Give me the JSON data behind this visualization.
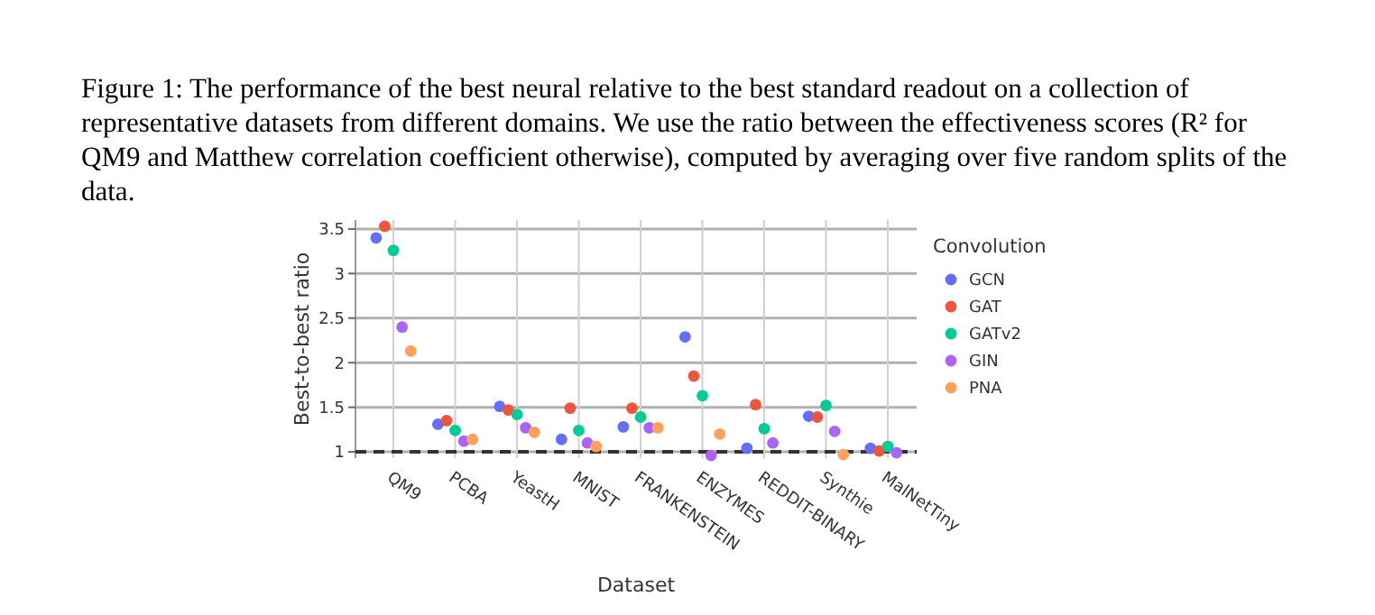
{
  "chart_data": {
    "type": "scatter",
    "title": "Figure 1: The performance of the best neural relative to the best standard readout on a collection of representative datasets from different domains. We use the ratio between the effectiveness scores (R² for QM9 and Matthew correlation coefficient otherwise), computed by averaging over five random splits of the data.",
    "xlabel": "Dataset",
    "ylabel": "Best-to-best ratio",
    "legend_title": "Convolution",
    "categories": [
      "QM9",
      "PCBA",
      "YeastH",
      "MNIST",
      "FRANKENSTEIN",
      "ENZYMES",
      "REDDIT-BINARY",
      "Synthie",
      "MalNetTiny"
    ],
    "series": [
      {
        "name": "GCN",
        "color": "#636efa",
        "values": [
          3.4,
          1.31,
          1.51,
          1.14,
          1.28,
          2.29,
          1.04,
          1.4,
          1.04
        ]
      },
      {
        "name": "GAT",
        "color": "#ef553b",
        "values": [
          3.53,
          1.35,
          1.47,
          1.49,
          1.49,
          1.85,
          1.53,
          1.39,
          1.01
        ]
      },
      {
        "name": "GATv2",
        "color": "#00cc96",
        "values": [
          3.26,
          1.24,
          1.42,
          1.24,
          1.39,
          1.63,
          1.26,
          1.52,
          1.06
        ]
      },
      {
        "name": "GIN",
        "color": "#ab63fa",
        "values": [
          2.4,
          1.12,
          1.27,
          1.1,
          1.27,
          0.96,
          1.1,
          1.23,
          0.99
        ]
      },
      {
        "name": "PNA",
        "color": "#ffa15a",
        "values": [
          2.13,
          1.14,
          1.22,
          1.06,
          1.27,
          1.2,
          null,
          0.97,
          null
        ]
      }
    ],
    "ylim": [
      0.93,
      3.6
    ],
    "yticks": [
      1,
      1.5,
      2,
      2.5,
      3,
      3.5
    ],
    "grid": true,
    "legend": "top right",
    "marker": "circle",
    "ref_lines": [
      {
        "axis": "y",
        "value": 1,
        "color": "#333333",
        "line_style": "dashed"
      }
    ]
  }
}
